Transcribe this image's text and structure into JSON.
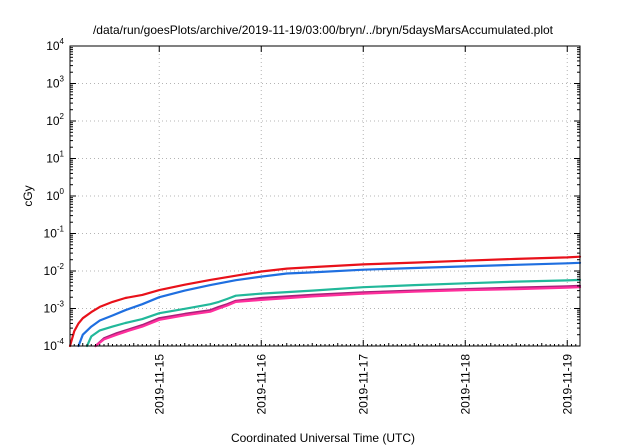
{
  "chart_data": {
    "type": "line",
    "title": "/data/run/goesPlots/archive/2019-11-19/03:00/bryn/../bryn/5daysMarsAccumulated.plot",
    "xlabel": "Coordinated Universal Time (UTC)",
    "ylabel": "cGy",
    "y_scale": "log",
    "ylim": [
      0.0001,
      10000
    ],
    "xlim": [
      "2019-11-14 03:00",
      "2019-11-19 03:00"
    ],
    "x_ticks": [
      "2019-11-15",
      "2019-11-16",
      "2019-11-17",
      "2019-11-18",
      "2019-11-19"
    ],
    "y_ticks": [
      {
        "base": "10",
        "exp": "4",
        "value": 10000
      },
      {
        "base": "10",
        "exp": "3",
        "value": 1000
      },
      {
        "base": "10",
        "exp": "2",
        "value": 100
      },
      {
        "base": "10",
        "exp": "1",
        "value": 10
      },
      {
        "base": "10",
        "exp": "0",
        "value": 1
      },
      {
        "base": "10",
        "exp": "-1",
        "value": 0.1
      },
      {
        "base": "10",
        "exp": "-2",
        "value": 0.01
      },
      {
        "base": "10",
        "exp": "-3",
        "value": 0.001
      },
      {
        "base": "10",
        "exp": "-4",
        "value": 0.0001
      }
    ],
    "grid": true,
    "legend": "none",
    "series": [
      {
        "color": "#e8111a",
        "points": [
          [
            "2019-11-14 03:00",
            0.0001
          ],
          [
            "2019-11-14 04:00",
            0.00025
          ],
          [
            "2019-11-14 05:00",
            0.0004
          ],
          [
            "2019-11-14 06:00",
            0.00055
          ],
          [
            "2019-11-14 08:00",
            0.0008
          ],
          [
            "2019-11-14 10:00",
            0.0011
          ],
          [
            "2019-11-14 13:00",
            0.0015
          ],
          [
            "2019-11-14 16:00",
            0.0019
          ],
          [
            "2019-11-14 20:00",
            0.0023
          ],
          [
            "2019-11-15 00:00",
            0.0031
          ],
          [
            "2019-11-15 06:00",
            0.0043
          ],
          [
            "2019-11-15 12:00",
            0.0058
          ],
          [
            "2019-11-15 18:00",
            0.0075
          ],
          [
            "2019-11-16 00:00",
            0.0097
          ],
          [
            "2019-11-16 06:00",
            0.0116
          ],
          [
            "2019-11-16 12:00",
            0.0127
          ],
          [
            "2019-11-17 00:00",
            0.015
          ],
          [
            "2019-11-17 12:00",
            0.0168
          ],
          [
            "2019-11-18 00:00",
            0.0188
          ],
          [
            "2019-11-18 12:00",
            0.021
          ],
          [
            "2019-11-19 00:00",
            0.023
          ],
          [
            "2019-11-19 03:00",
            0.024
          ]
        ]
      },
      {
        "color": "#1f6fe0",
        "points": [
          [
            "2019-11-14 05:00",
            0.0001
          ],
          [
            "2019-11-14 06:00",
            0.0002
          ],
          [
            "2019-11-14 08:00",
            0.00033
          ],
          [
            "2019-11-14 10:00",
            0.00048
          ],
          [
            "2019-11-14 13:00",
            0.00065
          ],
          [
            "2019-11-14 16:00",
            0.0009
          ],
          [
            "2019-11-14 20:00",
            0.0013
          ],
          [
            "2019-11-15 00:00",
            0.002
          ],
          [
            "2019-11-15 06:00",
            0.003
          ],
          [
            "2019-11-15 12:00",
            0.0042
          ],
          [
            "2019-11-15 18:00",
            0.0057
          ],
          [
            "2019-11-16 00:00",
            0.0071
          ],
          [
            "2019-11-16 06:00",
            0.0086
          ],
          [
            "2019-11-16 12:00",
            0.0092
          ],
          [
            "2019-11-17 00:00",
            0.0108
          ],
          [
            "2019-11-17 12:00",
            0.012
          ],
          [
            "2019-11-18 00:00",
            0.0133
          ],
          [
            "2019-11-18 12:00",
            0.0146
          ],
          [
            "2019-11-19 00:00",
            0.016
          ],
          [
            "2019-11-19 03:00",
            0.0165
          ]
        ]
      },
      {
        "color": "#22b89a",
        "points": [
          [
            "2019-11-14 07:00",
            0.0001
          ],
          [
            "2019-11-14 08:00",
            0.00018
          ],
          [
            "2019-11-14 10:00",
            0.00026
          ],
          [
            "2019-11-14 13:00",
            0.00033
          ],
          [
            "2019-11-14 16:00",
            0.00041
          ],
          [
            "2019-11-14 20:00",
            0.00052
          ],
          [
            "2019-11-15 00:00",
            0.00075
          ],
          [
            "2019-11-15 06:00",
            0.00098
          ],
          [
            "2019-11-15 12:00",
            0.0013
          ],
          [
            "2019-11-15 14:00",
            0.0015
          ],
          [
            "2019-11-15 16:00",
            0.0018
          ],
          [
            "2019-11-15 18:00",
            0.0022
          ],
          [
            "2019-11-16 00:00",
            0.0025
          ],
          [
            "2019-11-16 12:00",
            0.003
          ],
          [
            "2019-11-17 00:00",
            0.0037
          ],
          [
            "2019-11-17 12:00",
            0.0042
          ],
          [
            "2019-11-18 00:00",
            0.0047
          ],
          [
            "2019-11-18 12:00",
            0.0052
          ],
          [
            "2019-11-19 00:00",
            0.0056
          ],
          [
            "2019-11-19 03:00",
            0.0058
          ]
        ]
      },
      {
        "color": "#a8227a",
        "points": [
          [
            "2019-11-14 09:00",
            0.0001
          ],
          [
            "2019-11-14 11:00",
            0.00016
          ],
          [
            "2019-11-14 14:00",
            0.00022
          ],
          [
            "2019-11-14 17:00",
            0.00028
          ],
          [
            "2019-11-14 20:00",
            0.00036
          ],
          [
            "2019-11-15 00:00",
            0.00055
          ],
          [
            "2019-11-15 06:00",
            0.00072
          ],
          [
            "2019-11-15 12:00",
            0.0009
          ],
          [
            "2019-11-15 14:00",
            0.0011
          ],
          [
            "2019-11-15 16:00",
            0.0013
          ],
          [
            "2019-11-15 18:00",
            0.0016
          ],
          [
            "2019-11-16 00:00",
            0.0019
          ],
          [
            "2019-11-16 12:00",
            0.0023
          ],
          [
            "2019-11-17 00:00",
            0.0027
          ],
          [
            "2019-11-17 12:00",
            0.003
          ],
          [
            "2019-11-18 00:00",
            0.0033
          ],
          [
            "2019-11-18 12:00",
            0.0036
          ],
          [
            "2019-11-19 00:00",
            0.0039
          ],
          [
            "2019-11-19 03:00",
            0.004
          ]
        ]
      },
      {
        "color": "#ff2f9c",
        "points": [
          [
            "2019-11-14 09:00",
            0.0001
          ],
          [
            "2019-11-14 11:00",
            0.00015
          ],
          [
            "2019-11-14 14:00",
            0.0002
          ],
          [
            "2019-11-14 17:00",
            0.00026
          ],
          [
            "2019-11-14 20:00",
            0.00033
          ],
          [
            "2019-11-15 00:00",
            0.0005
          ],
          [
            "2019-11-15 06:00",
            0.00066
          ],
          [
            "2019-11-15 12:00",
            0.00082
          ],
          [
            "2019-11-15 14:00",
            0.001
          ],
          [
            "2019-11-15 16:00",
            0.0012
          ],
          [
            "2019-11-15 18:00",
            0.0015
          ],
          [
            "2019-11-16 00:00",
            0.0017
          ],
          [
            "2019-11-16 12:00",
            0.0021
          ],
          [
            "2019-11-17 00:00",
            0.0025
          ],
          [
            "2019-11-17 12:00",
            0.0028
          ],
          [
            "2019-11-18 00:00",
            0.0031
          ],
          [
            "2019-11-18 12:00",
            0.0033
          ],
          [
            "2019-11-19 00:00",
            0.0036
          ],
          [
            "2019-11-19 03:00",
            0.0037
          ]
        ]
      }
    ]
  }
}
